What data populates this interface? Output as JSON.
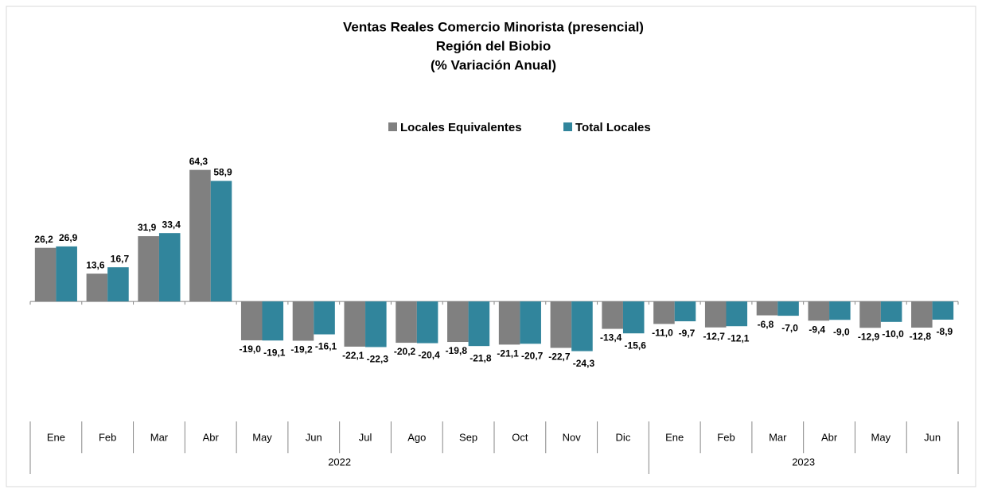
{
  "chart_data": {
    "type": "bar",
    "title": [
      "Ventas Reales Comercio Minorista (presencial)",
      "Región del Biobio",
      "(% Variación Anual)"
    ],
    "categories": [
      "Ene",
      "Feb",
      "Mar",
      "Abr",
      "May",
      "Jun",
      "Jul",
      "Ago",
      "Sep",
      "Oct",
      "Nov",
      "Dic",
      "Ene",
      "Feb",
      "Mar",
      "Abr",
      "May",
      "Jun"
    ],
    "category_groups": [
      {
        "name": "2022",
        "size": 12
      },
      {
        "name": "2023",
        "size": 6
      }
    ],
    "series": [
      {
        "name": "Locales Equivalentes",
        "color": "#808080",
        "values": [
          26.2,
          13.6,
          31.9,
          64.3,
          -19.0,
          -19.2,
          -22.1,
          -20.2,
          -19.8,
          -21.1,
          -22.7,
          -13.4,
          -11.0,
          -12.7,
          -6.8,
          -9.4,
          -12.9,
          -12.8
        ],
        "value_labels": [
          "26,2",
          "13,6",
          "31,9",
          "64,3",
          "-19,0",
          "-19,2",
          "-22,1",
          "-20,2",
          "-19,8",
          "-21,1",
          "-22,7",
          "-13,4",
          "-11,0",
          "-12,7",
          "-6,8",
          "-9,4",
          "-12,9",
          "-12,8"
        ]
      },
      {
        "name": "Total Locales",
        "color": "#31859c",
        "values": [
          26.9,
          16.7,
          33.4,
          58.9,
          -19.1,
          -16.1,
          -22.3,
          -20.4,
          -21.8,
          -20.7,
          -24.3,
          -15.6,
          -9.7,
          -12.1,
          -7.0,
          -9.0,
          -10.0,
          -8.9
        ],
        "value_labels": [
          "26,9",
          "16,7",
          "33,4",
          "58,9",
          "-19,1",
          "-16,1",
          "-22,3",
          "-20,4",
          "-21,8",
          "-20,7",
          "-24,3",
          "-15,6",
          "-9,7",
          "-12,1",
          "-7,0",
          "-9,0",
          "-10,0",
          "-8,9"
        ]
      }
    ],
    "ylim": [
      -40,
      70
    ],
    "legend": "top"
  }
}
